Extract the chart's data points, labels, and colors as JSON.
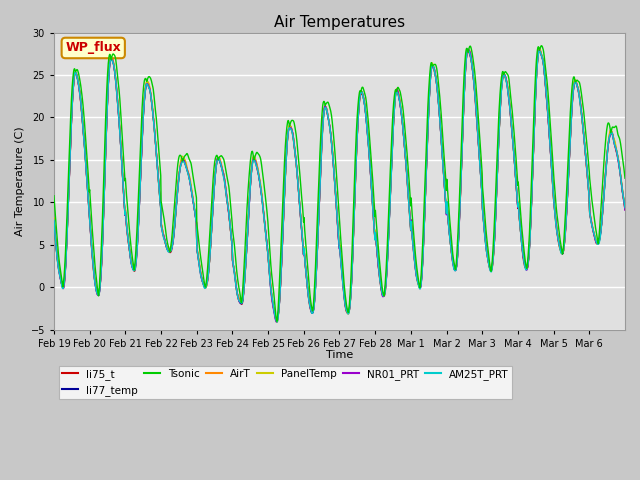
{
  "title": "Air Temperatures",
  "ylabel": "Air Temperature (C)",
  "xlabel": "Time",
  "ylim": [
    -5,
    30
  ],
  "yticks": [
    -5,
    0,
    5,
    10,
    15,
    20,
    25,
    30
  ],
  "xtick_labels": [
    "Feb 19",
    "Feb 20",
    "Feb 21",
    "Feb 22",
    "Feb 23",
    "Feb 24",
    "Feb 25",
    "Feb 26",
    "Feb 27",
    "Feb 28",
    "Mar 1",
    "Mar 2",
    "Mar 3",
    "Mar 4",
    "Mar 5",
    "Mar 6"
  ],
  "fig_bg_color": "#c8c8c8",
  "plot_bg_color": "#e0e0e0",
  "legend_entries": [
    "li75_t",
    "li77_temp",
    "Tsonic",
    "AirT",
    "PanelTemp",
    "NR01_PRT",
    "AM25T_PRT"
  ],
  "line_colors": [
    "#cc0000",
    "#000099",
    "#00cc00",
    "#ff8800",
    "#cccc00",
    "#9900cc",
    "#00cccc"
  ],
  "wp_flux_label": "WP_flux",
  "wp_flux_color": "#cc0000",
  "wp_flux_bg": "#ffffcc",
  "wp_flux_border": "#cc8800",
  "day_maxes": [
    25,
    27,
    24,
    15,
    15,
    15,
    19,
    21,
    23,
    23,
    26,
    28,
    25,
    28,
    24,
    18
  ],
  "day_mins": [
    0,
    -1,
    2,
    4,
    0,
    -2,
    -4,
    -3,
    -3,
    -1,
    0,
    2,
    2,
    2,
    4,
    5
  ],
  "tsonic_extra": [
    3,
    4,
    4,
    3,
    3,
    4,
    4,
    4,
    3,
    3,
    3,
    3,
    3,
    3,
    3,
    4
  ]
}
